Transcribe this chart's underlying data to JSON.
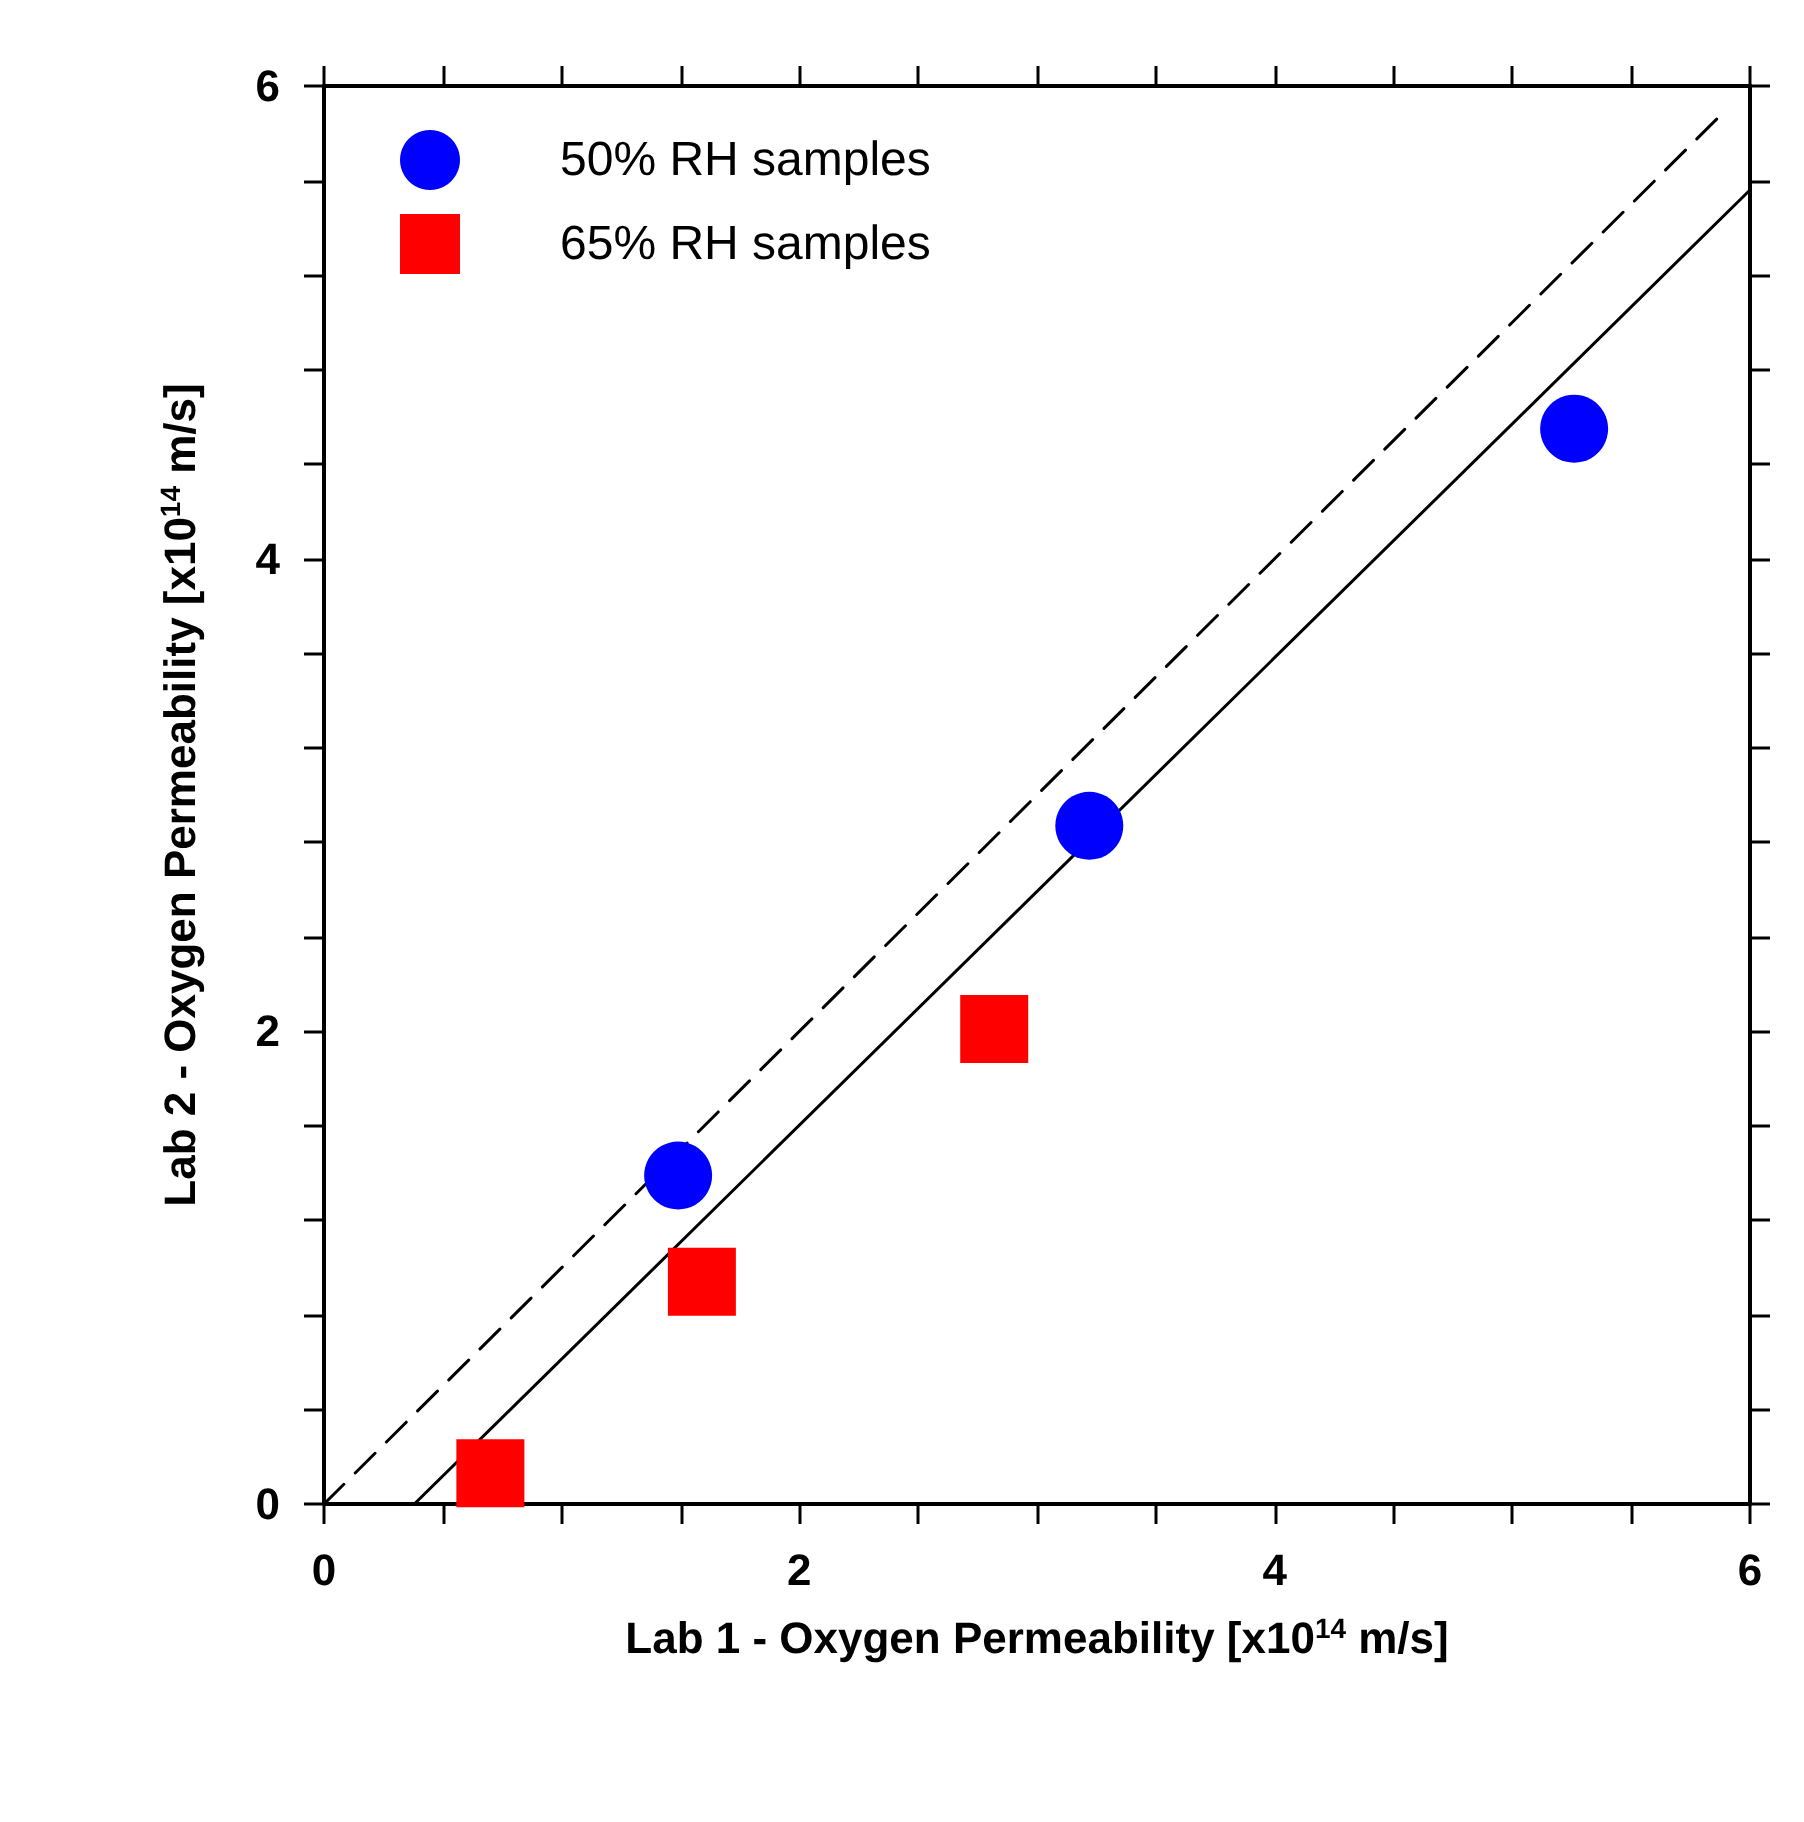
{
  "chart_data": {
    "type": "scatter",
    "xlabel": "Lab 1 - Oxygen Permeability [x10$^{14}$ m/s]",
    "ylabel": "Lab 2 - Oxygen Permeability [x10$^{14}$ m/s]",
    "xlim": [
      0,
      6
    ],
    "ylim": [
      0,
      6
    ],
    "xticks": [
      0,
      {
        "value": 0.5,
        "label": null
      },
      {
        "value": 1,
        "label": null
      },
      {
        "value": 1.5,
        "label": null
      },
      2,
      {
        "value": 2.5,
        "label": null
      },
      {
        "value": 3,
        "label": null
      },
      {
        "value": 3.5,
        "label": null
      },
      4,
      {
        "value": 4.5,
        "label": null
      },
      {
        "value": 5,
        "label": null
      },
      {
        "value": 5.5,
        "label": null
      },
      6
    ],
    "yticks": [
      0,
      {
        "value": 0.4,
        "label": null
      },
      {
        "value": 0.8,
        "label": null
      },
      {
        "value": 1.2,
        "label": null
      },
      {
        "value": 1.6,
        "label": null
      },
      2,
      {
        "value": 2.4,
        "label": null
      },
      {
        "value": 2.8,
        "label": null
      },
      {
        "value": 3.2,
        "label": null
      },
      {
        "value": 3.6,
        "label": null
      },
      4,
      {
        "value": 4.4,
        "label": null
      },
      {
        "value": 4.8,
        "label": null
      },
      {
        "value": 5.2,
        "label": null
      },
      {
        "value": 5.6,
        "label": null
      },
      6
    ],
    "grid": false,
    "legend": "top left",
    "series": [
      {
        "name": "50% RH samples",
        "marker": "circle",
        "color": "#0000ff",
        "x": [
          1.49,
          3.22,
          5.26
        ],
        "values": [
          1.39,
          2.87,
          4.55
        ]
      },
      {
        "name": "65% RH samples",
        "marker": "square",
        "color": "#ff0000",
        "x": [
          0.7,
          1.59,
          2.82
        ],
        "values": [
          0.13,
          0.94,
          2.01
        ]
      },
      {
        "type": "line",
        "marker": "none",
        "line_style": "dashed",
        "color": "#000000",
        "x": [
          0,
          5.9
        ],
        "values": [
          0,
          5.9
        ]
      },
      {
        "type": "line",
        "marker": "none",
        "line_style": "solid",
        "color": "#000000",
        "x": [
          0.38,
          6
        ],
        "values": [
          0,
          5.56
        ]
      }
    ]
  }
}
